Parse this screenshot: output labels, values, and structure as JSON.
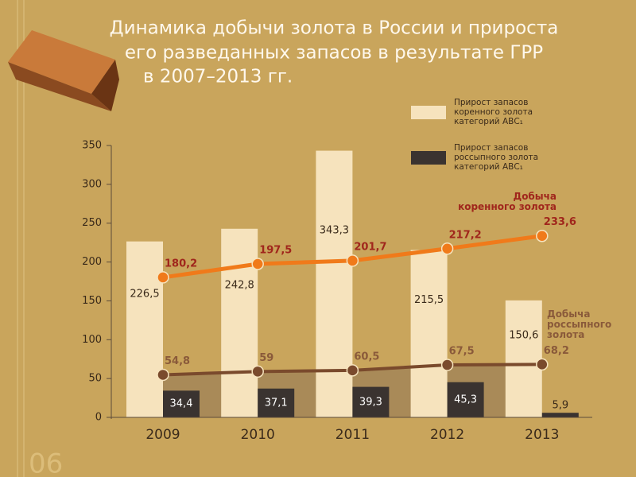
{
  "chart_data": {
    "type": "bar_line",
    "title": [
      "Динамика добычи золота в России и прироста",
      "его разведанных запасов в результате ГРР",
      "в 2007–2013 гг."
    ],
    "page_number": "06",
    "categories": [
      "2009",
      "2010",
      "2011",
      "2012",
      "2013"
    ],
    "ylim": [
      0,
      350
    ],
    "yticks": [
      0,
      50,
      100,
      150,
      200,
      250,
      300,
      350
    ],
    "series": [
      {
        "name": "Прирост запасов коренного золота категорий АВС₁",
        "kind": "bar",
        "color": "#f6e3bd",
        "values": [
          226.5,
          242.8,
          343.3,
          215.5,
          150.6
        ],
        "value_labels": [
          "226,5",
          "242,8",
          "343,3",
          "215,5",
          "150,6"
        ]
      },
      {
        "name": "Прирост запасов россыпного золота категорий АВС₁",
        "kind": "bar",
        "color": "#3a3330",
        "values": [
          34.4,
          37.1,
          39.3,
          45.3,
          5.9
        ],
        "value_labels": [
          "34,4",
          "37,1",
          "39,3",
          "45,3",
          "5,9"
        ]
      },
      {
        "name": "Добыча коренного золота",
        "kind": "line",
        "color": "#f07a1a",
        "values": [
          180.2,
          197.5,
          201.7,
          217.2,
          233.6
        ],
        "value_labels": [
          "180,2",
          "197,5",
          "201,7",
          "217,2",
          "233,6"
        ]
      },
      {
        "name": "Добыча россыпного золота",
        "kind": "line",
        "color": "#7a4a2c",
        "values": [
          54.8,
          59,
          60.5,
          67.5,
          68.2
        ],
        "value_labels": [
          "54,8",
          "59",
          "60,5",
          "67,5",
          "68,2"
        ]
      }
    ]
  }
}
